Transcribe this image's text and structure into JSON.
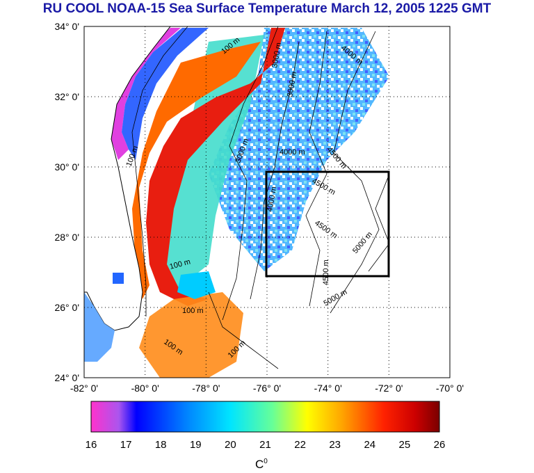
{
  "title": "RU COOL  NOAA-15 Sea Surface Temperature March 12, 2005 1225 GMT",
  "map": {
    "lat_labels": [
      "34° 0'",
      "32° 0'",
      "30° 0'",
      "28° 0'",
      "26° 0'",
      "24° 0'"
    ],
    "lon_labels": [
      "-82° 0'",
      "-80° 0'",
      "-78° 0'",
      "-76° 0'",
      "-74° 0'",
      "-72° 0'",
      "-70° 0'"
    ],
    "contour_labels": [
      "100 m",
      "100 m",
      "100 m",
      "100 m",
      "100 m",
      "100 m",
      "3000 m",
      "3000 m",
      "4000 m",
      "4000 m",
      "4500 m",
      "4500 m",
      "4500 m",
      "4500 m",
      "5000 m",
      "5000 m",
      "4000 m",
      "3000 m"
    ],
    "box": {
      "lat_min": 27.0,
      "lat_max": 30.0,
      "lon_min": -76.0,
      "lon_max": -72.0
    },
    "colors": {
      "land": "#ffffff",
      "coast": "#000000",
      "box": "#000000",
      "title": "#1a1aa6"
    }
  },
  "colorbar": {
    "min": 16,
    "max": 26,
    "ticks": [
      "16",
      "17",
      "18",
      "19",
      "20",
      "21",
      "22",
      "23",
      "24",
      "25",
      "26"
    ],
    "unit": "C",
    "unit_sup": "0",
    "stops": [
      "#ff33cc",
      "#8855ee",
      "#0000ff",
      "#0088ff",
      "#00e5ff",
      "#66ff99",
      "#ffff00",
      "#ffa500",
      "#ff2200",
      "#cc0000",
      "#7a0000"
    ]
  }
}
